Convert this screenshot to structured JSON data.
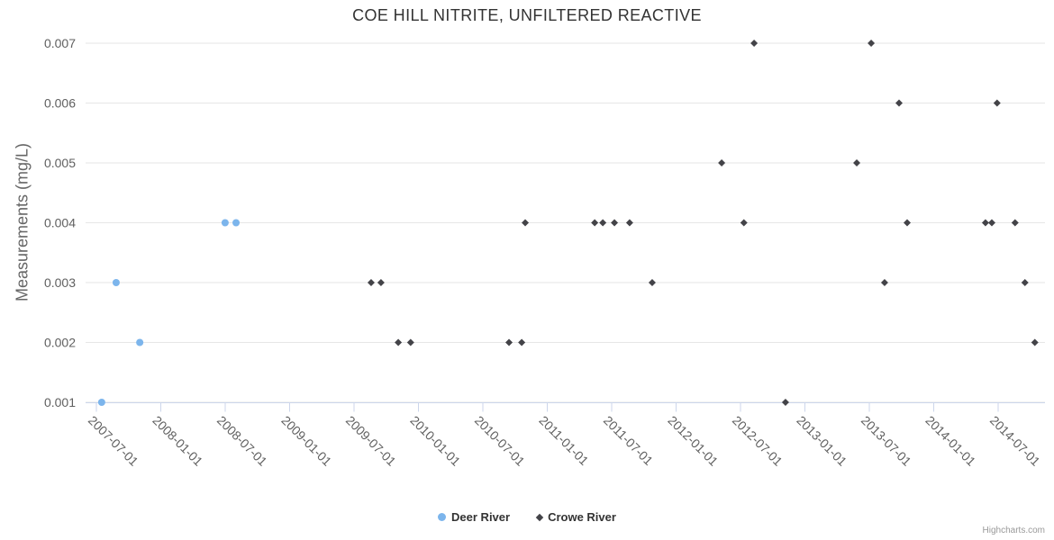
{
  "chart_data": {
    "type": "scatter",
    "title": "COE HILL NITRITE, UNFILTERED REACTIVE",
    "xlabel": "",
    "ylabel": "Measurements (mg/L)",
    "x_axis_type": "datetime",
    "grid": "horizontal",
    "legend_position": "bottom-center",
    "ylim": [
      0.001,
      0.007
    ],
    "y_step": 0.001,
    "y_ticks": [
      "0.001",
      "0.002",
      "0.003",
      "0.004",
      "0.005",
      "0.006",
      "0.007"
    ],
    "x_ticks": [
      "2007-07-01",
      "2008-01-01",
      "2008-07-01",
      "2009-01-01",
      "2009-07-01",
      "2010-01-01",
      "2010-07-01",
      "2011-01-01",
      "2011-07-01",
      "2012-01-01",
      "2012-07-01",
      "2013-01-01",
      "2013-07-01",
      "2014-01-01",
      "2014-07-01"
    ],
    "xlim": [
      "2007-05-31",
      "2014-11-11"
    ],
    "series": [
      {
        "name": "Deer River",
        "color": "#7cb5ec",
        "marker": "circle",
        "data": [
          {
            "x": "2007-07-16",
            "y": 0.001
          },
          {
            "x": "2007-08-26",
            "y": 0.003
          },
          {
            "x": "2007-11-01",
            "y": 0.002
          },
          {
            "x": "2008-06-30",
            "y": 0.004
          },
          {
            "x": "2008-07-31",
            "y": 0.004
          }
        ]
      },
      {
        "name": "Crowe River",
        "color": "#434348",
        "marker": "diamond",
        "data": [
          {
            "x": "2009-08-18",
            "y": 0.003
          },
          {
            "x": "2009-09-15",
            "y": 0.003
          },
          {
            "x": "2009-11-03",
            "y": 0.002
          },
          {
            "x": "2009-12-08",
            "y": 0.002
          },
          {
            "x": "2010-09-13",
            "y": 0.002
          },
          {
            "x": "2010-10-19",
            "y": 0.002
          },
          {
            "x": "2010-10-29",
            "y": 0.004
          },
          {
            "x": "2011-05-14",
            "y": 0.004
          },
          {
            "x": "2011-06-06",
            "y": 0.004
          },
          {
            "x": "2011-07-09",
            "y": 0.004
          },
          {
            "x": "2011-08-21",
            "y": 0.004
          },
          {
            "x": "2011-10-24",
            "y": 0.003
          },
          {
            "x": "2012-05-08",
            "y": 0.005
          },
          {
            "x": "2012-07-10",
            "y": 0.004
          },
          {
            "x": "2012-08-08",
            "y": 0.007
          },
          {
            "x": "2012-11-05",
            "y": 0.001
          },
          {
            "x": "2013-05-26",
            "y": 0.005
          },
          {
            "x": "2013-07-06",
            "y": 0.007
          },
          {
            "x": "2013-08-13",
            "y": 0.003
          },
          {
            "x": "2013-09-23",
            "y": 0.006
          },
          {
            "x": "2013-10-16",
            "y": 0.004
          },
          {
            "x": "2014-05-26",
            "y": 0.004
          },
          {
            "x": "2014-06-13",
            "y": 0.004
          },
          {
            "x": "2014-06-28",
            "y": 0.006
          },
          {
            "x": "2014-08-18",
            "y": 0.004
          },
          {
            "x": "2014-09-15",
            "y": 0.003
          },
          {
            "x": "2014-10-13",
            "y": 0.002
          }
        ]
      }
    ],
    "colors": {
      "gridline": "#e6e6e6",
      "axis_line": "#ccd6eb",
      "title_text": "#333333",
      "axis_label_text": "#606060",
      "axis_title_text": "#666666",
      "legend_text": "#333333",
      "credit_text": "#999999"
    }
  },
  "credit": {
    "label": "Highcharts.com"
  }
}
